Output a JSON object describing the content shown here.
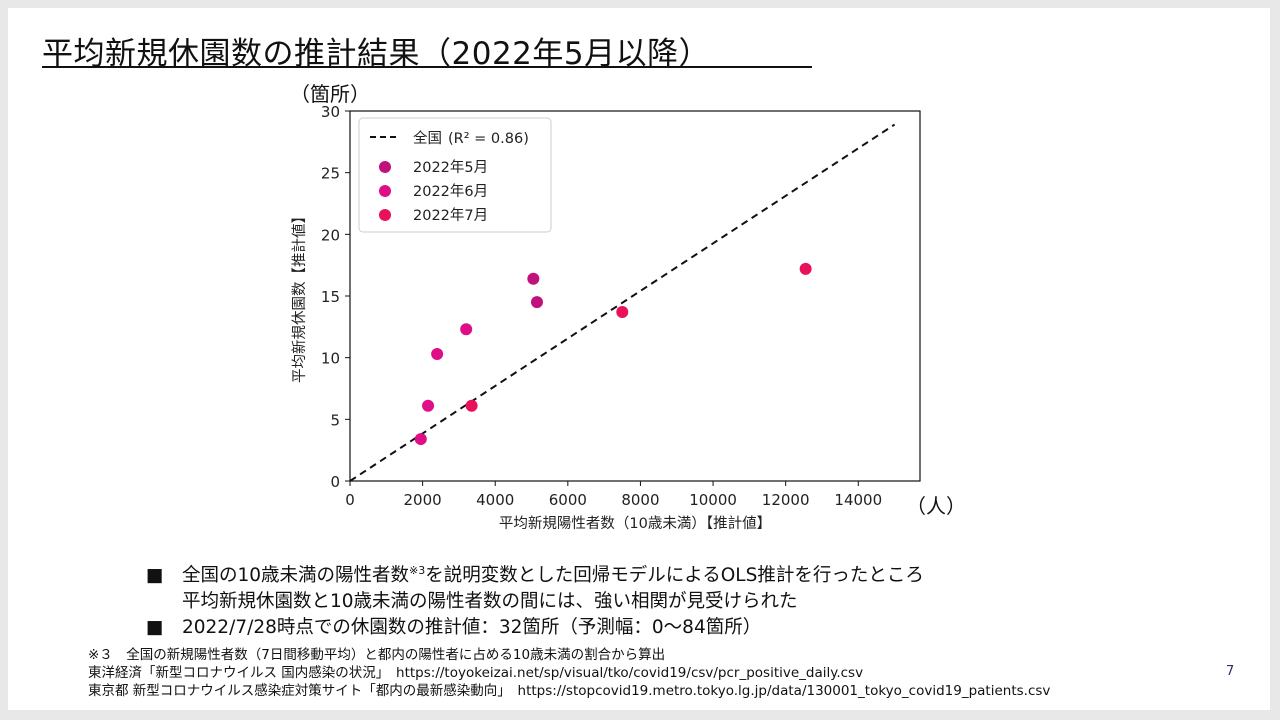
{
  "slide": {
    "title": "平均新規休園数の推計結果（2022年5月以降）",
    "y_unit": "（箇所）",
    "x_unit": "（人）",
    "page_number": "7"
  },
  "chart_data": {
    "type": "scatter",
    "xlabel": "平均新規陽性者数（10歳未満）【推計値】",
    "ylabel": "平均新規休園数【推計値】",
    "xlim": [
      0,
      15700
    ],
    "ylim": [
      0,
      30
    ],
    "xticks": [
      0,
      2000,
      4000,
      6000,
      8000,
      10000,
      12000,
      14000
    ],
    "yticks": [
      0,
      5,
      10,
      15,
      20,
      25,
      30
    ],
    "legend_position": "top-left",
    "fit_line": {
      "label_prefix": "全国",
      "label_stat": "(R² = 0.86)",
      "x": [
        0,
        15000
      ],
      "y": [
        0,
        28.9
      ],
      "style": "dashed",
      "color": "#111111"
    },
    "series": [
      {
        "name": "2022年5月",
        "color": "#c0117c",
        "points": [
          [
            5050,
            16.4
          ],
          [
            5150,
            14.5
          ]
        ]
      },
      {
        "name": "2022年6月",
        "color": "#dd0e86",
        "points": [
          [
            1950,
            3.4
          ],
          [
            2150,
            6.1
          ],
          [
            2400,
            10.3
          ],
          [
            3200,
            12.3
          ]
        ]
      },
      {
        "name": "2022年7月",
        "color": "#e8115a",
        "points": [
          [
            3350,
            6.1
          ],
          [
            7500,
            13.7
          ],
          [
            12550,
            17.2
          ]
        ]
      }
    ]
  },
  "bullets": {
    "b1_mark": "■",
    "b1_text_a": "全国の10歳未満の陽性者数",
    "b1_sup": "※3",
    "b1_text_b": "を説明変数とした回帰モデルによるOLS推計を行ったところ",
    "b1_line2": "平均新規休園数と10歳未満の陽性者数の間には、強い相関が見受けられた",
    "b2_mark": "■",
    "b2_text": "2022/7/28時点での休園数の推計値：32箇所（予測幅：0〜84箇所）"
  },
  "notes": {
    "n1": "※３　全国の新規陽性者数（7日間移動平均）と都内の陽性者に占める10歳未満の割合から算出",
    "n2": "東洋経済「新型コロナウイルス 国内感染の状況」　https://toyokeizai.net/sp/visual/tko/covid19/csv/pcr_positive_daily.csv",
    "n3": "東京都 新型コロナウイルス感染症対策サイト「都内の最新感染動向」　https://stopcovid19.metro.tokyo.lg.jp/data/130001_tokyo_covid19_patients.csv"
  }
}
